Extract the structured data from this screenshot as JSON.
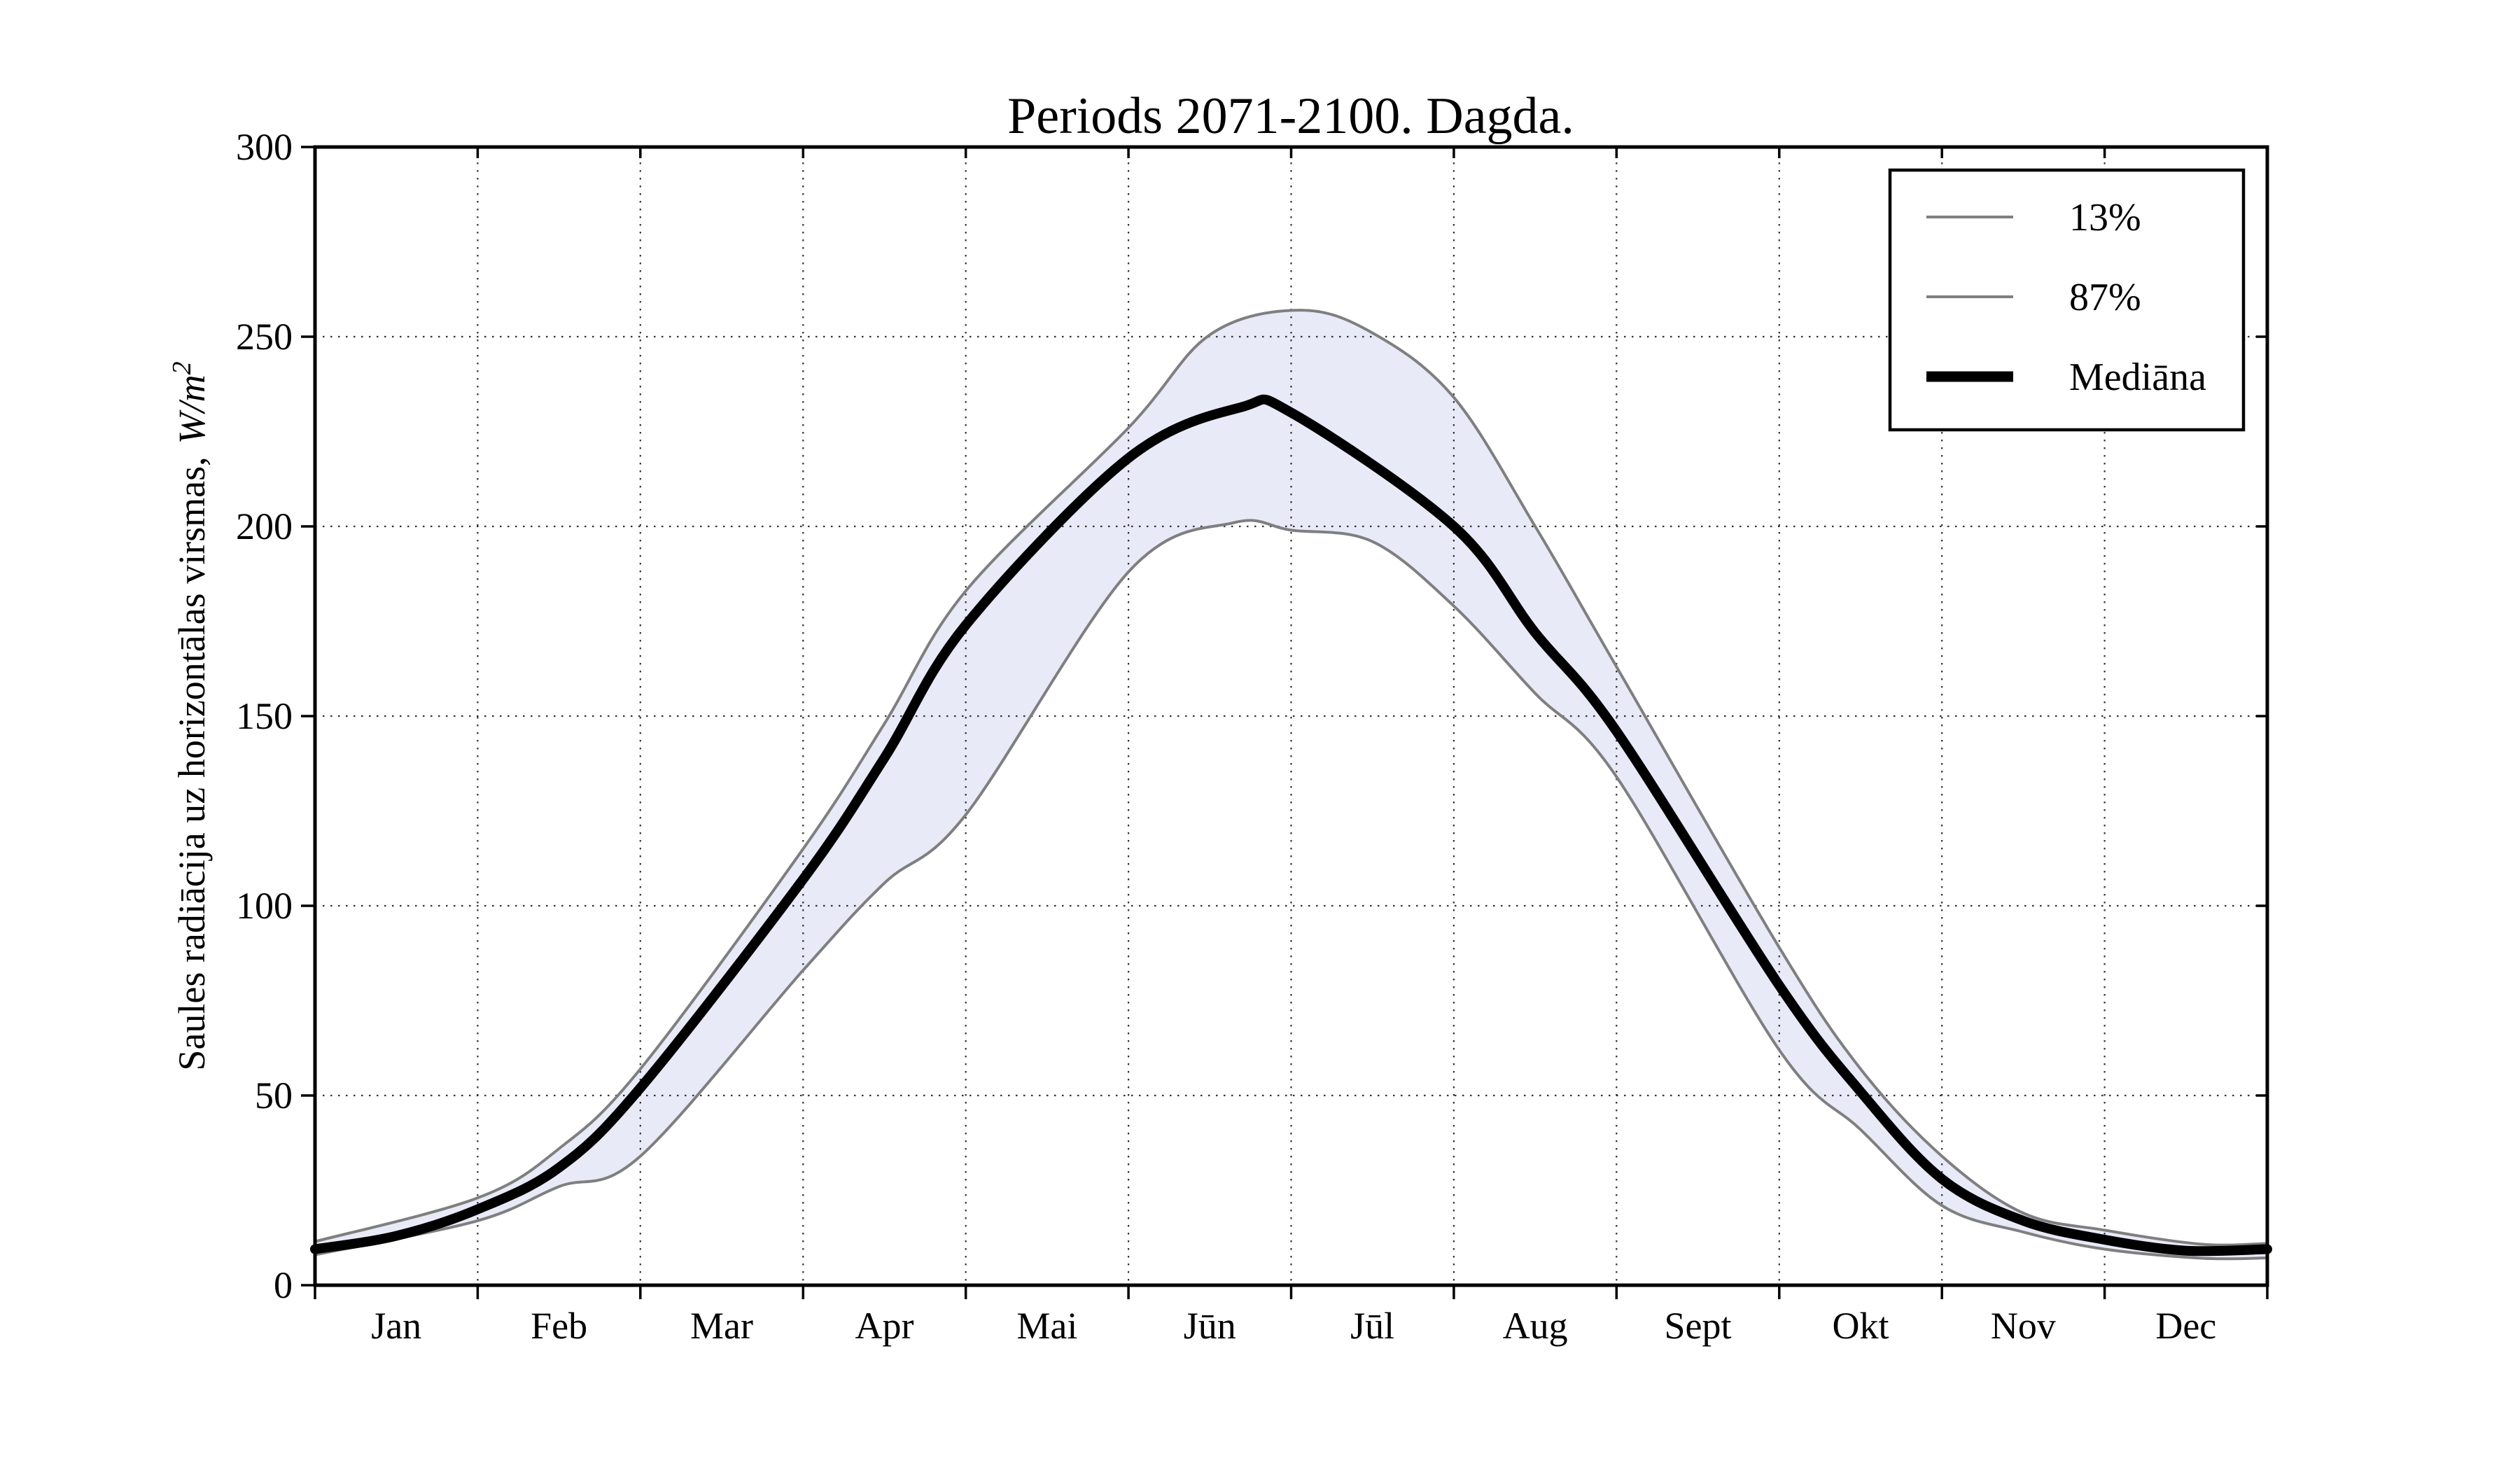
{
  "title": "Periods 2071-2100. Dagda.",
  "axes": {
    "ylabel_prefix": "Saules radiācija uz horizontālas virsmas,",
    "ylabel_math": "W/m",
    "ylabel_exponent": "2",
    "y_ticks": [
      0,
      50,
      100,
      150,
      200,
      250,
      300
    ],
    "x_tick_labels": [
      "Jan",
      "Feb",
      "Mar",
      "Apr",
      "Mai",
      "Jūn",
      "Jūl",
      "Aug",
      "Sept",
      "Okt",
      "Nov",
      "Dec"
    ]
  },
  "legend": {
    "entries": [
      {
        "label": "13%",
        "color": "#7f7f7f",
        "line_width": 4
      },
      {
        "label": "87%",
        "color": "#7f7f7f",
        "line_width": 4
      },
      {
        "label": "Mediāna",
        "color": "#000000",
        "line_width": 14
      }
    ]
  },
  "colors": {
    "background": "#ffffff",
    "band_fill": "#e9eaf8",
    "percentile_line": "#7f7f7f",
    "median_line": "#000000",
    "grid": "#111111",
    "axis": "#000000"
  },
  "chart_data": {
    "type": "line",
    "title": "Periods 2071-2100. Dagda.",
    "xlabel": "",
    "ylabel": "Saules radiācija uz horizontālas virsmas, W/m²",
    "ylim": [
      0,
      300
    ],
    "x_months_range": [
      0,
      12
    ],
    "grid": true,
    "legend_position": "upper right",
    "categories": [
      "Jan",
      "Feb",
      "Mar",
      "Apr",
      "Mai",
      "Jūn",
      "Jūl",
      "Aug",
      "Sept",
      "Okt",
      "Nov",
      "Dec"
    ],
    "values_at_month_start": {
      "note": "W/m² read at the first day of each month",
      "Mediāna": [
        9.5,
        20,
        52,
        107,
        174,
        218,
        230,
        200,
        146,
        79,
        28,
        12
      ],
      "87%": [
        11.5,
        23,
        57,
        115,
        183,
        226,
        256,
        234,
        163,
        89,
        34,
        14.5
      ],
      "13%": [
        8,
        17,
        34,
        83,
        124,
        188,
        199,
        179,
        134,
        62,
        21,
        9.5
      ]
    },
    "annotations": {
      "median_peak": {
        "value": 231.5,
        "when": "late June"
      },
      "upper_peak": {
        "value": 257,
        "when": "early July"
      },
      "lower_peak": {
        "value": 201,
        "when": "late June"
      },
      "winter_minimum_median": 9.1
    },
    "series": [
      {
        "name": "87%",
        "role": "upper_percentile",
        "color": "#7f7f7f",
        "width": 4,
        "x_months": [
          0,
          1,
          1.5,
          2,
          3,
          3.5,
          4,
          5,
          5.5,
          6.05,
          6.5,
          7,
          7.5,
          8,
          9,
          9.5,
          10,
          10.5,
          11,
          11.6,
          12
        ],
        "values": [
          11.5,
          23,
          36,
          57,
          115,
          148,
          183,
          226,
          250.5,
          257,
          251,
          234,
          200,
          163,
          89,
          57,
          34,
          19,
          14.5,
          10.8,
          11
        ]
      },
      {
        "name": "13%",
        "role": "lower_percentile",
        "color": "#7f7f7f",
        "width": 4,
        "x_months": [
          0,
          1,
          1.5,
          2,
          3,
          3.5,
          4,
          5,
          5.65,
          6,
          6.5,
          7,
          7.5,
          8,
          9,
          9.5,
          10,
          10.5,
          11,
          11.6,
          12
        ],
        "values": [
          8,
          17,
          26,
          34,
          83,
          106,
          124,
          188,
          201,
          199,
          196,
          179,
          156,
          134,
          62,
          41,
          21,
          14,
          9.5,
          7.1,
          7.2
        ]
      },
      {
        "name": "Mediāna",
        "role": "median",
        "color": "#000000",
        "width": 14,
        "x_months": [
          0,
          0.5,
          1,
          1.5,
          2,
          3,
          3.5,
          4,
          5,
          5.7,
          6,
          7,
          7.5,
          8,
          9,
          9.5,
          10,
          10.5,
          11,
          11.5,
          12
        ],
        "values": [
          9.5,
          13,
          20,
          31,
          52,
          107,
          139,
          174,
          218,
          231.5,
          230,
          200,
          172,
          146,
          79,
          51,
          28,
          17,
          12,
          9.1,
          9.5
        ]
      }
    ]
  }
}
